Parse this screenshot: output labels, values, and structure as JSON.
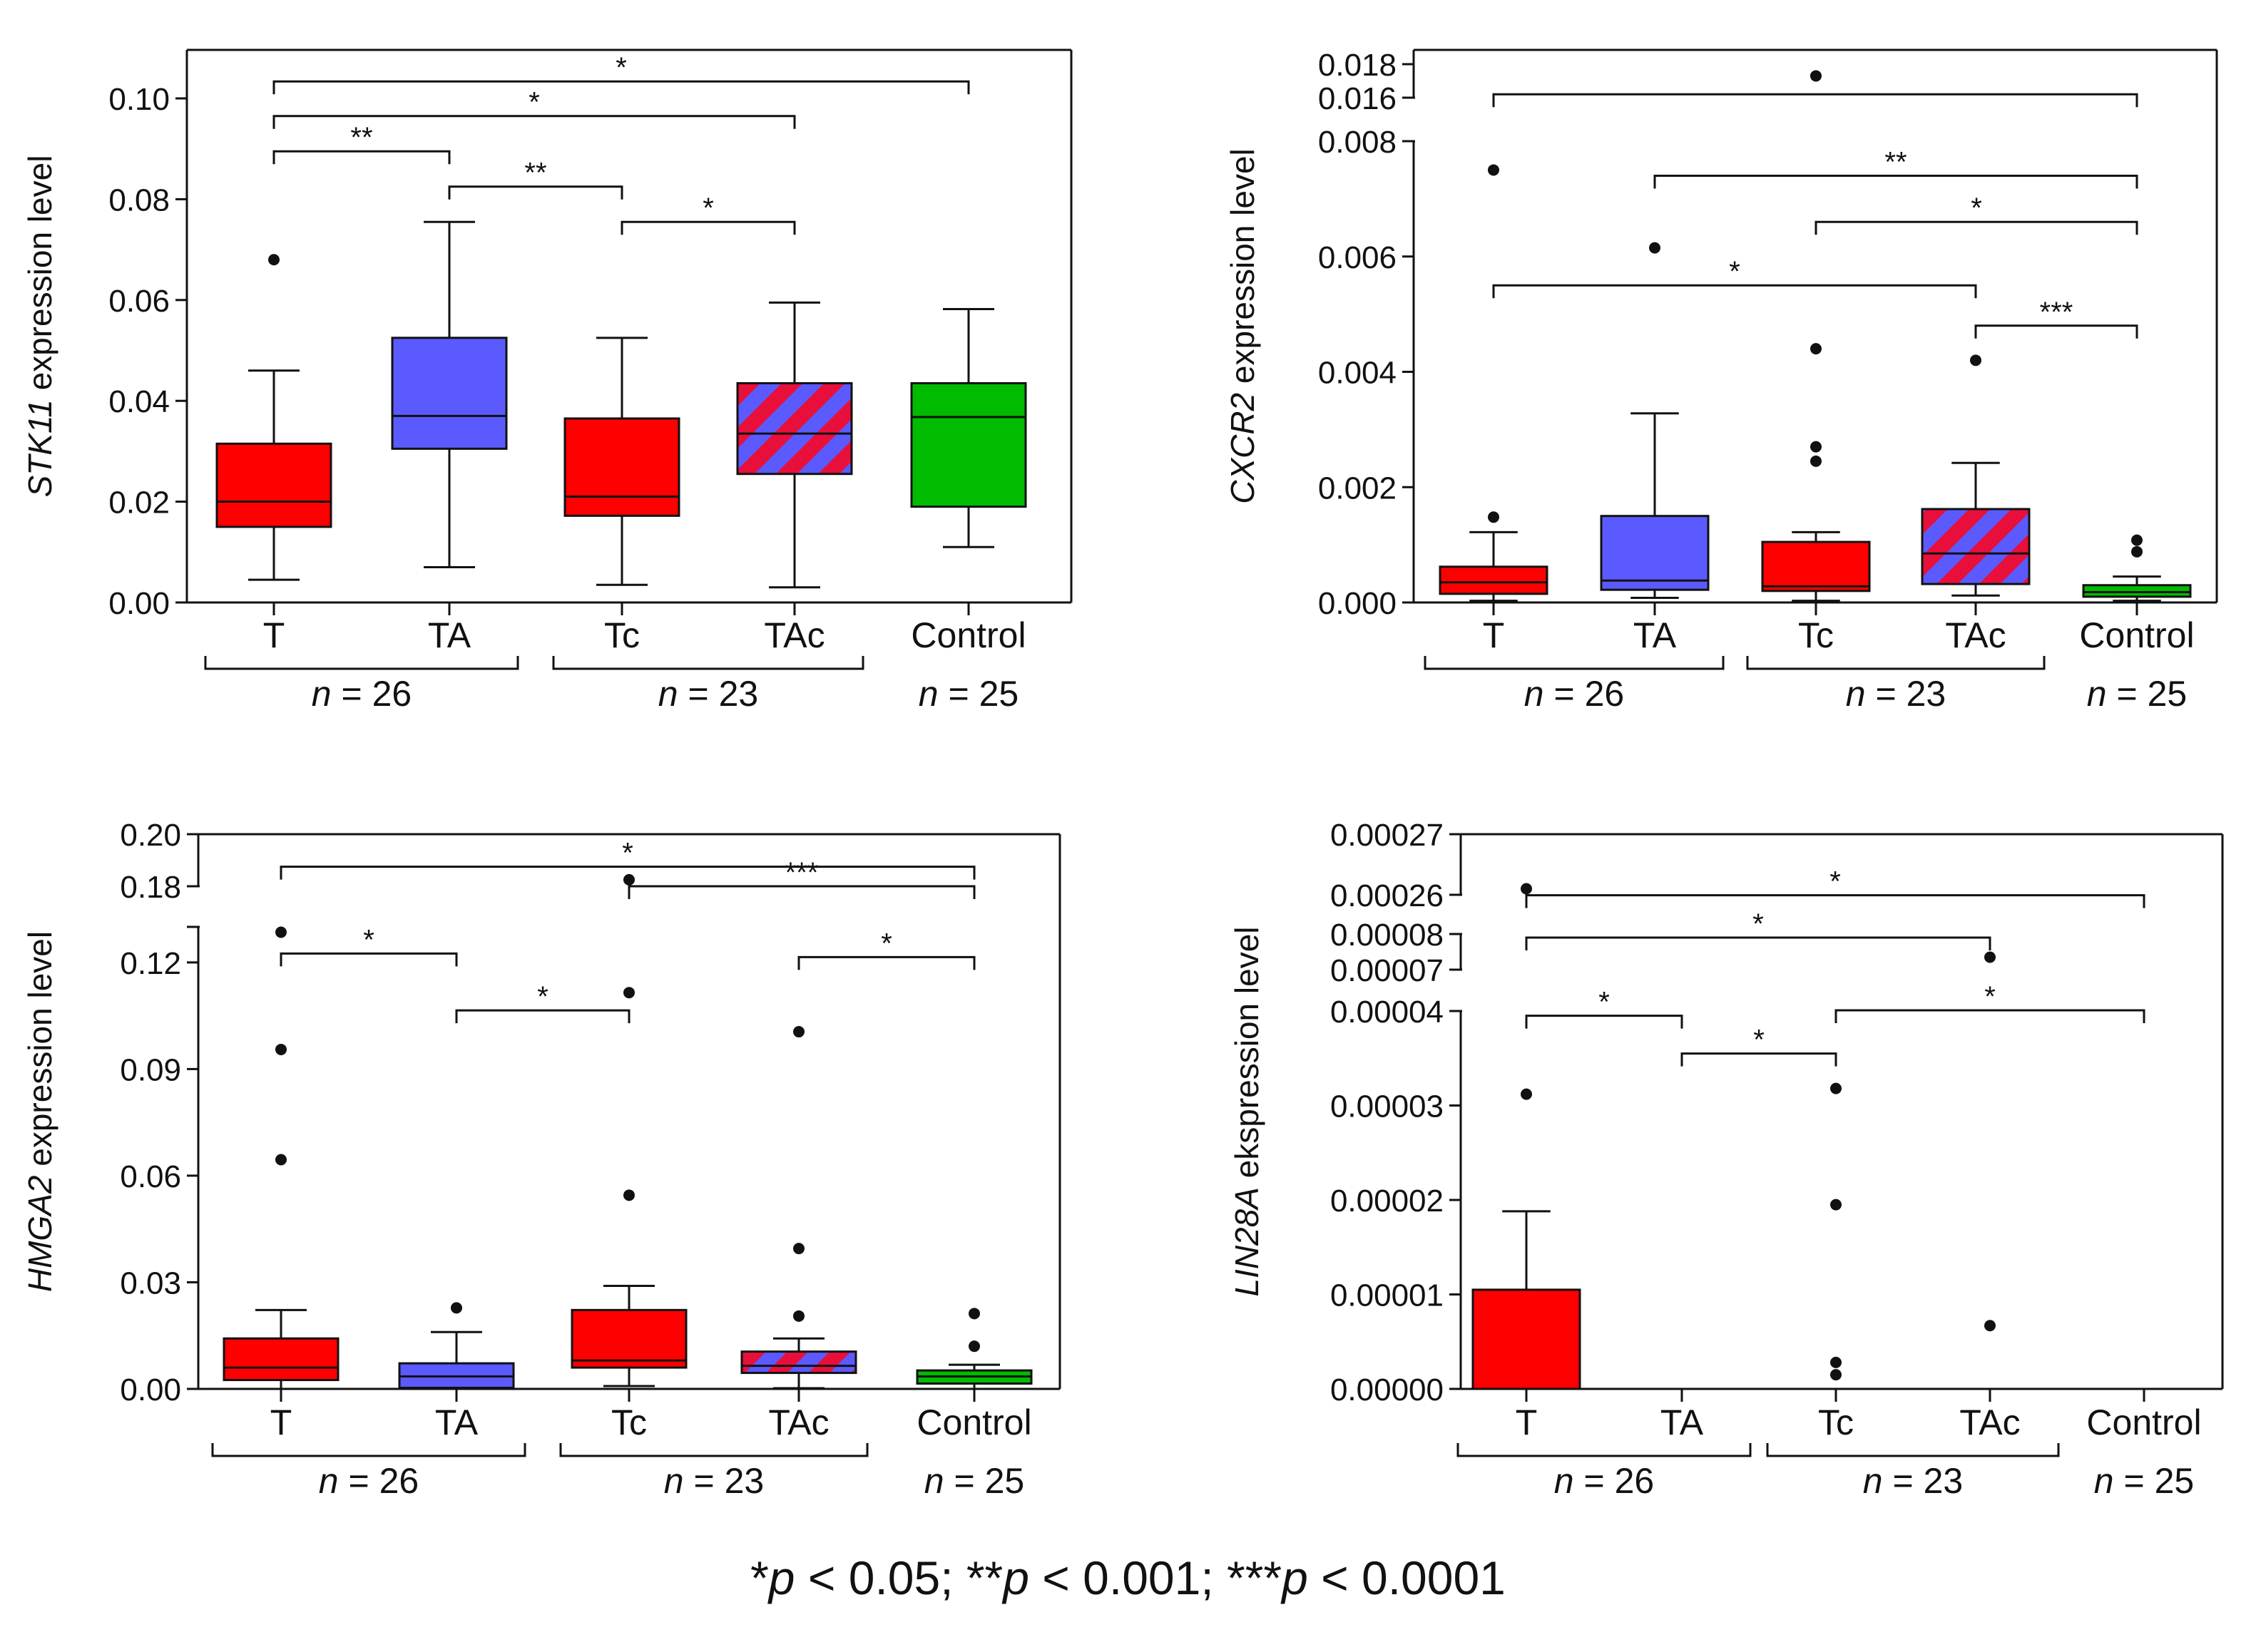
{
  "colors": {
    "red": "#ff0000",
    "blue": "#5a5aff",
    "green": "#00bb00",
    "ink": "#111111"
  },
  "footnote": {
    "parts": [
      {
        "text": "*",
        "italic": false
      },
      {
        "text": "p",
        "italic": true
      },
      {
        "text": " < 0.05; **",
        "italic": false
      },
      {
        "text": "p",
        "italic": true
      },
      {
        "text": " < 0.001; ***",
        "italic": false
      },
      {
        "text": "p",
        "italic": true
      },
      {
        "text": " < 0.0001",
        "italic": false
      }
    ],
    "text": "*p < 0.05; **p < 0.001; ***p < 0.0001"
  },
  "chart_data": [
    {
      "type": "box",
      "title": "",
      "gene": "STK11",
      "ylabel_suffix": " expression level",
      "categories": [
        "T",
        "TA",
        "Tc",
        "TAc",
        "Control"
      ],
      "fills": [
        "red",
        "blue",
        "red",
        "stripes",
        "green"
      ],
      "ylim": [
        0,
        0.11
      ],
      "yticks": [
        0.0,
        0.02,
        0.04,
        0.06,
        0.08,
        0.1
      ],
      "yticklabels": [
        "0.00",
        "0.02",
        "0.04",
        "0.06",
        "0.08",
        "0.10"
      ],
      "broken": false,
      "boxes": [
        {
          "q1": 0.015,
          "median": 0.02,
          "q3": 0.0315,
          "low": 0.0045,
          "high": 0.046,
          "outliers": [
            0.068
          ]
        },
        {
          "q1": 0.0305,
          "median": 0.037,
          "q3": 0.0525,
          "low": 0.007,
          "high": 0.0755,
          "outliers": []
        },
        {
          "q1": 0.0172,
          "median": 0.021,
          "q3": 0.0365,
          "low": 0.0035,
          "high": 0.0525,
          "outliers": []
        },
        {
          "q1": 0.0255,
          "median": 0.0335,
          "q3": 0.0435,
          "low": 0.003,
          "high": 0.0595,
          "outliers": []
        },
        {
          "q1": 0.019,
          "median": 0.0368,
          "q3": 0.0435,
          "low": 0.011,
          "high": 0.0582,
          "outliers": []
        }
      ],
      "significance": [
        {
          "from": 0,
          "to": 4,
          "label": "*",
          "y": 0.1035
        },
        {
          "from": 0,
          "to": 3,
          "label": "*",
          "y": 0.0965
        },
        {
          "from": 0,
          "to": 1,
          "label": "**",
          "y": 0.0895
        },
        {
          "from": 1,
          "to": 2,
          "label": "**",
          "y": 0.0825
        },
        {
          "from": 2,
          "to": 3,
          "label": "*",
          "y": 0.0755
        }
      ],
      "groups": [
        {
          "from": 0,
          "to": 1,
          "label": "n = 26"
        },
        {
          "from": 2,
          "to": 3,
          "label": "n = 23"
        },
        {
          "from": 4,
          "to": 4,
          "label": "n = 25"
        }
      ]
    },
    {
      "type": "box",
      "title": "",
      "gene": "CXCR2",
      "ylabel_suffix": " expression level",
      "categories": [
        "T",
        "TA",
        "Tc",
        "TAc",
        "Control"
      ],
      "fills": [
        "red",
        "blue",
        "red",
        "stripes",
        "green"
      ],
      "ylim": [
        0,
        0.0185
      ],
      "yticks": [
        0.0,
        0.002,
        0.004,
        0.006,
        0.008,
        0.016,
        0.018
      ],
      "yticklabels": [
        "0.000",
        "0.002",
        "0.004",
        "0.006",
        "0.008",
        "0.016",
        "0.018"
      ],
      "broken": true,
      "break": {
        "lower_max": 0.008,
        "upper_min": 0.016
      },
      "boxes": [
        {
          "q1": 0.00015,
          "median": 0.00035,
          "q3": 0.00062,
          "low": 3e-05,
          "high": 0.00122,
          "outliers": [
            0.00148,
            0.0075
          ]
        },
        {
          "q1": 0.00022,
          "median": 0.00038,
          "q3": 0.0015,
          "low": 8e-05,
          "high": 0.00328,
          "outliers": [
            0.00615
          ]
        },
        {
          "q1": 0.0002,
          "median": 0.00028,
          "q3": 0.00105,
          "low": 3e-05,
          "high": 0.00122,
          "outliers": [
            0.00245,
            0.0027,
            0.0044,
            0.0173
          ]
        },
        {
          "q1": 0.00032,
          "median": 0.00085,
          "q3": 0.00162,
          "low": 0.00012,
          "high": 0.00242,
          "outliers": [
            0.0042
          ]
        },
        {
          "q1": 0.0001,
          "median": 0.00018,
          "q3": 0.0003,
          "low": 3e-05,
          "high": 0.00045,
          "outliers": [
            0.00088,
            0.00108
          ]
        }
      ],
      "significance": [
        {
          "from": 0,
          "to": 4,
          "label": "*",
          "y": 0.0162
        },
        {
          "from": 1,
          "to": 4,
          "label": "**",
          "y": 0.0074
        },
        {
          "from": 2,
          "to": 4,
          "label": "*",
          "y": 0.0066
        },
        {
          "from": 0,
          "to": 3,
          "label": "*",
          "y": 0.0055
        },
        {
          "from": 3,
          "to": 4,
          "label": "***",
          "y": 0.0048
        }
      ],
      "groups": [
        {
          "from": 0,
          "to": 1,
          "label": "n = 26"
        },
        {
          "from": 2,
          "to": 3,
          "label": "n = 23"
        },
        {
          "from": 4,
          "to": 4,
          "label": "n = 25"
        }
      ]
    },
    {
      "type": "box",
      "title": "",
      "gene": "HMGA2",
      "ylabel_suffix": " expression level",
      "categories": [
        "T",
        "TA",
        "Tc",
        "TAc",
        "Control"
      ],
      "fills": [
        "red",
        "blue",
        "red",
        "stripes",
        "green"
      ],
      "ylim": [
        0,
        0.2
      ],
      "yticks": [
        0.0,
        0.03,
        0.06,
        0.09,
        0.12,
        0.18,
        0.2
      ],
      "yticklabels": [
        "0.00",
        "0.03",
        "0.06",
        "0.09",
        "0.12",
        "0.18",
        "0.20"
      ],
      "broken": true,
      "break": {
        "lower_max": 0.13,
        "upper_min": 0.17
      },
      "boxes": [
        {
          "q1": 0.0025,
          "median": 0.006,
          "q3": 0.0142,
          "low": 0.0,
          "high": 0.0222,
          "outliers": [
            0.0645,
            0.0955,
            0.1285
          ]
        },
        {
          "q1": 0.0003,
          "median": 0.0035,
          "q3": 0.0072,
          "low": 0.0,
          "high": 0.016,
          "outliers": [
            0.0228
          ]
        },
        {
          "q1": 0.006,
          "median": 0.008,
          "q3": 0.0222,
          "low": 0.0008,
          "high": 0.029,
          "outliers": [
            0.0545,
            0.1115,
            0.1825
          ]
        },
        {
          "q1": 0.0045,
          "median": 0.0065,
          "q3": 0.0105,
          "low": 0.0002,
          "high": 0.0142,
          "outliers": [
            0.0205,
            0.0395,
            0.1005
          ]
        },
        {
          "q1": 0.0015,
          "median": 0.0035,
          "q3": 0.0052,
          "low": 0.0,
          "high": 0.0068,
          "outliers": [
            0.012,
            0.0212
          ]
        }
      ],
      "significance": [
        {
          "from": 0,
          "to": 4,
          "label": "*",
          "y": 0.1875
        },
        {
          "from": 2,
          "to": 4,
          "label": "***",
          "y": 0.1795
        },
        {
          "from": 0,
          "to": 1,
          "label": "*",
          "y": 0.1225
        },
        {
          "from": 3,
          "to": 4,
          "label": "*",
          "y": 0.1215
        },
        {
          "from": 1,
          "to": 2,
          "label": "*",
          "y": 0.1065
        }
      ],
      "groups": [
        {
          "from": 0,
          "to": 1,
          "label": "n = 26"
        },
        {
          "from": 2,
          "to": 3,
          "label": "n = 23"
        },
        {
          "from": 4,
          "to": 4,
          "label": "n = 25"
        }
      ]
    },
    {
      "type": "box",
      "title": "",
      "gene": "LIN28A",
      "ylabel_suffix": " ekspression level",
      "categories": [
        "T",
        "TA",
        "Tc",
        "TAc",
        "Control"
      ],
      "fills": [
        "red",
        "none",
        "none",
        "none",
        "none"
      ],
      "ylim": [
        0,
        0.00027
      ],
      "yticks": [
        0.0,
        1e-05,
        2e-05,
        3e-05,
        4e-05,
        7e-05,
        8e-05,
        0.00026,
        0.00027
      ],
      "yticklabels": [
        "0.00000",
        "0.00001",
        "0.00002",
        "0.00003",
        "0.00004",
        "0.00007",
        "0.00008",
        "0.00026",
        "0.00027"
      ],
      "broken": true,
      "break_note": "two axis breaks: 0.00004–0.00007 and 0.00008–0.00026",
      "boxes": [
        {
          "q1": 0.0,
          "median": 0.0,
          "q3": 1.05e-05,
          "low": 0.0,
          "high": 1.88e-05,
          "outliers": [
            3.12e-05,
            0.000261
          ]
        },
        {
          "q1": 0.0,
          "median": 0.0,
          "q3": 0.0,
          "low": 0.0,
          "high": 0.0,
          "outliers": []
        },
        {
          "q1": 0.0,
          "median": 0.0,
          "q3": 0.0,
          "low": 0.0,
          "high": 0.0,
          "outliers": [
            1.5e-06,
            2.8e-06,
            1.95e-05,
            3.18e-05
          ]
        },
        {
          "q1": 0.0,
          "median": 0.0,
          "q3": 0.0,
          "low": 0.0,
          "high": 0.0,
          "outliers": [
            6.7e-06,
            7.35e-05
          ]
        },
        {
          "q1": 0.0,
          "median": 0.0,
          "q3": 0.0,
          "low": 0.0,
          "high": 0.0,
          "outliers": []
        }
      ],
      "significance": [
        {
          "from": 0,
          "to": 4,
          "label": "*",
          "y": 0.000258
        },
        {
          "from": 0,
          "to": 3,
          "label": "*",
          "y": 7.9e-05
        },
        {
          "from": 0,
          "to": 1,
          "label": "*",
          "y": 3.95e-05
        },
        {
          "from": 2,
          "to": 4,
          "label": "*",
          "y": 4.05e-05
        },
        {
          "from": 1,
          "to": 2,
          "label": "*",
          "y": 3.55e-05
        }
      ],
      "groups": [
        {
          "from": 0,
          "to": 1,
          "label": "n = 26"
        },
        {
          "from": 2,
          "to": 3,
          "label": "n = 23"
        },
        {
          "from": 4,
          "to": 4,
          "label": "n = 25"
        }
      ]
    }
  ]
}
